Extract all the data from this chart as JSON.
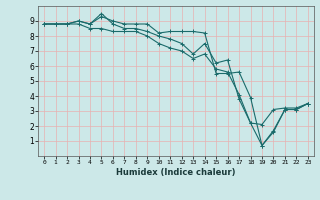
{
  "title": "",
  "xlabel": "Humidex (Indice chaleur)",
  "ylabel": "",
  "xlim": [
    -0.5,
    23.5
  ],
  "ylim": [
    0,
    10
  ],
  "xticks": [
    0,
    1,
    2,
    3,
    4,
    5,
    6,
    7,
    8,
    9,
    10,
    11,
    12,
    13,
    14,
    15,
    16,
    17,
    18,
    19,
    20,
    21,
    22,
    23
  ],
  "yticks": [
    1,
    2,
    3,
    4,
    5,
    6,
    7,
    8,
    9
  ],
  "background_color": "#cce8e8",
  "grid_color": "#e8b0b0",
  "line_color": "#1a6b6b",
  "series": [
    [
      8.8,
      8.8,
      8.8,
      9.0,
      8.8,
      9.3,
      9.0,
      8.8,
      8.8,
      8.8,
      8.2,
      8.3,
      8.3,
      8.3,
      8.2,
      5.5,
      5.5,
      5.6,
      3.9,
      0.7,
      1.7,
      3.1,
      3.1,
      3.5
    ],
    [
      8.8,
      8.8,
      8.8,
      9.0,
      8.8,
      9.5,
      8.8,
      8.5,
      8.5,
      8.3,
      8.0,
      7.8,
      7.5,
      6.8,
      7.5,
      6.2,
      6.4,
      3.8,
      2.2,
      2.1,
      3.1,
      3.2,
      3.2,
      3.5
    ],
    [
      8.8,
      8.8,
      8.8,
      8.8,
      8.5,
      8.5,
      8.3,
      8.3,
      8.3,
      8.0,
      7.5,
      7.2,
      7.0,
      6.5,
      6.8,
      5.8,
      5.6,
      4.1,
      2.2,
      0.7,
      1.6,
      3.1,
      3.1,
      3.5
    ]
  ]
}
